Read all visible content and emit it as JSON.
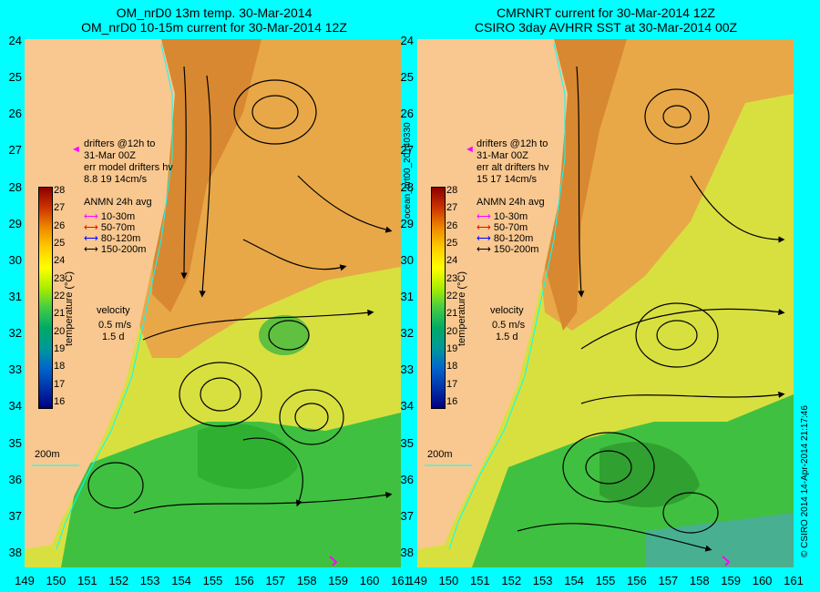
{
  "left_panel": {
    "title_line1": "OM_nrD0 13m temp. 30-Mar-2014",
    "title_line2": "OM_nrD0 10-15m current for 30-Mar-2014 12Z",
    "drifters_line1": "drifters @12h to",
    "drifters_line2": "31-Mar 00Z",
    "drifters_line3": "err model drifters hv",
    "drifters_line4": "8.8 19 14cm/s"
  },
  "right_panel": {
    "title_line1": "CMRNRT current for 30-Mar-2014 12Z",
    "title_line2": "CSIRO 3day AVHRR SST at 30-Mar-2014 00Z",
    "drifters_line1": "drifters @12h to",
    "drifters_line2": "31-Mar 00Z",
    "drifters_line3": "err alt drifters hv",
    "drifters_line4": "15 17 14cm/s"
  },
  "legend": {
    "title": "ANMN 24h avg",
    "items": [
      {
        "label": "10-30m",
        "color": "#ff00ff"
      },
      {
        "label": "50-70m",
        "color": "#ff0000"
      },
      {
        "label": "80-120m",
        "color": "#0000ff"
      },
      {
        "label": "150-200m",
        "color": "#000000"
      }
    ],
    "velocity_label": "velocity",
    "velocity_value": "0.5 m/s",
    "velocity_time": "1.5 d"
  },
  "colorbar": {
    "label": "temperature (°C)",
    "ticks": [
      "28",
      "27",
      "26",
      "25",
      "24",
      "23",
      "22",
      "21",
      "20",
      "19",
      "18",
      "17",
      "16"
    ]
  },
  "isobath_label": "200m",
  "lat_ticks": [
    "24",
    "25",
    "26",
    "27",
    "28",
    "29",
    "30",
    "31",
    "32",
    "33",
    "34",
    "35",
    "36",
    "37",
    "38"
  ],
  "lon_ticks": [
    "149",
    "150",
    "151",
    "152",
    "153",
    "154",
    "155",
    "156",
    "157",
    "158",
    "159",
    "160",
    "161"
  ],
  "side_text_middle": "ocean_nrt00_20140330",
  "side_text_right": "© CSIRO 2014   14-Apr-2014 21:17:46",
  "colors": {
    "background": "#00ffff",
    "land": "#f8c890",
    "warm_orange": "#e8a040",
    "mid_yellow": "#d8e040",
    "cool_green": "#40c040"
  }
}
